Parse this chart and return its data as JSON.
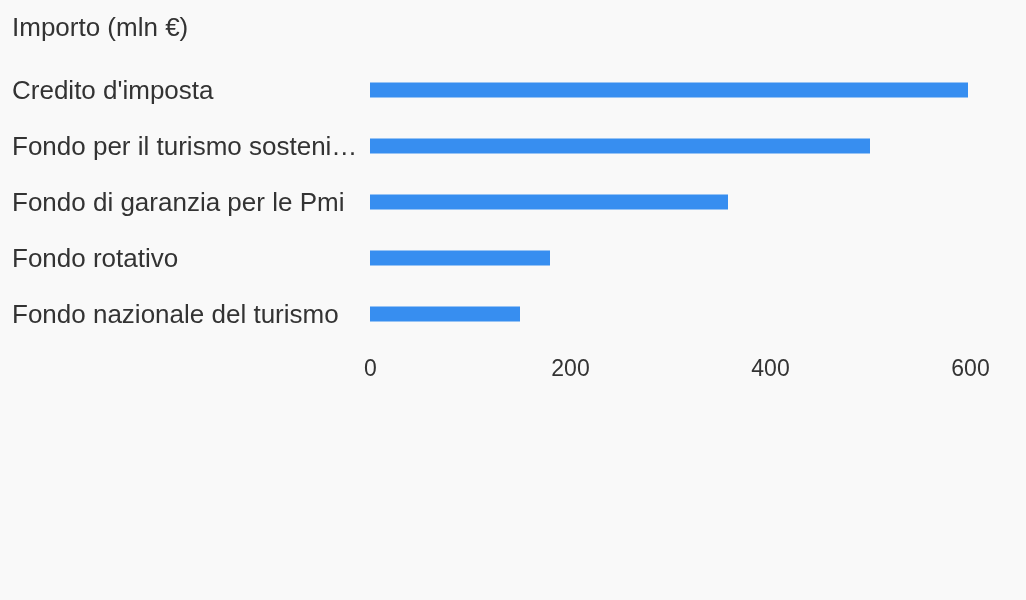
{
  "chart_data": {
    "type": "bar",
    "orientation": "horizontal",
    "title": "Importo (mln €)",
    "categories": [
      "Credito d'imposta",
      "Fondo per il turismo sosteni…",
      "Fondo di garanzia per le Pmi",
      "Fondo rotativo",
      "Fondo nazionale del turismo"
    ],
    "values": [
      598,
      500,
      358,
      180,
      150
    ],
    "color": "#378ef0",
    "xlim": [
      0,
      600
    ],
    "xticks": [
      0,
      200,
      400,
      600
    ],
    "grid": false
  }
}
